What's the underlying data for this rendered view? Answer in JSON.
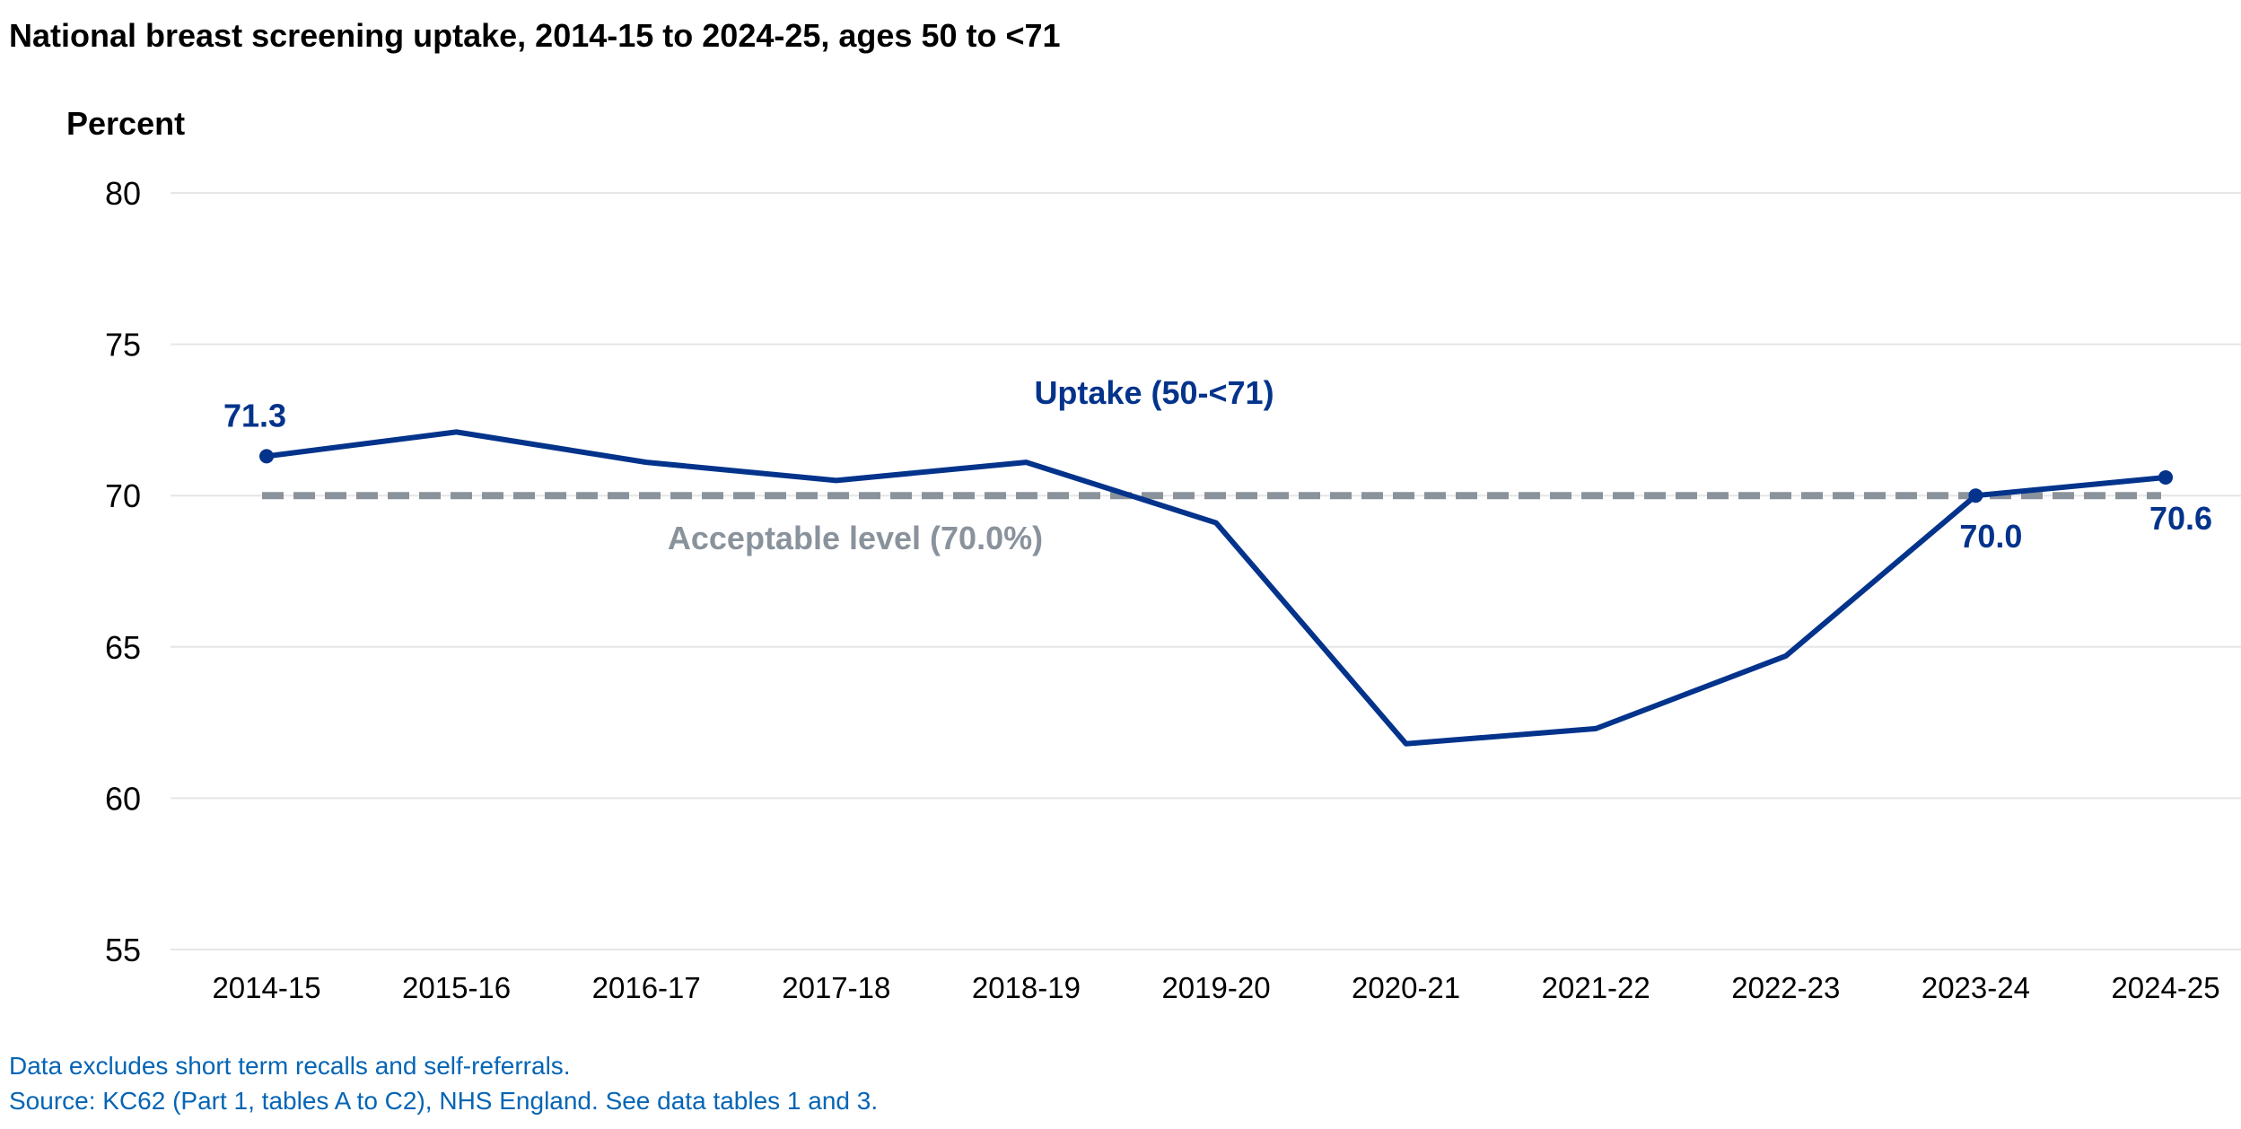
{
  "colors": {
    "series": "#03338b",
    "reference": "#8a939c",
    "gridline": "#e6e6e6",
    "note": "#0565b5"
  },
  "chart_data": {
    "type": "line",
    "title": "National breast screening uptake, 2014-15 to 2024-25, ages 50 to <71",
    "ylabel": "Percent",
    "xlabel": "",
    "ylim": [
      55,
      80
    ],
    "yticks": [
      55,
      60,
      65,
      70,
      75,
      80
    ],
    "grid": true,
    "categories": [
      "2014-15",
      "2015-16",
      "2016-17",
      "2017-18",
      "2018-19",
      "2019-20",
      "2020-21",
      "2021-22",
      "2022-23",
      "2023-24",
      "2024-25"
    ],
    "series": [
      {
        "name": "Uptake (50-<71)",
        "values": [
          71.3,
          72.1,
          71.1,
          70.5,
          71.1,
          69.1,
          61.8,
          62.3,
          64.7,
          70.0,
          70.6
        ],
        "labeled_points": [
          {
            "index": 0,
            "label": "71.3"
          },
          {
            "index": 9,
            "label": "70.0"
          },
          {
            "index": 10,
            "label": "70.6"
          }
        ]
      }
    ],
    "reference_line": {
      "label": "Acceptable level (70.0%)",
      "value": 70.0,
      "style": "dashed"
    }
  },
  "notes": [
    "Data excludes short term recalls and self-referrals.",
    "Source: KC62 (Part 1, tables A to C2), NHS England. See data tables 1 and 3."
  ]
}
